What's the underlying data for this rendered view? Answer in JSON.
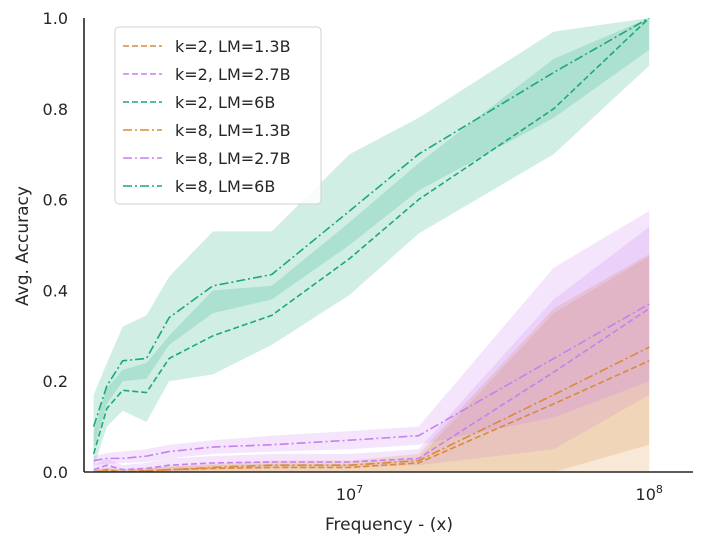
{
  "chart_data": {
    "type": "line",
    "title": "",
    "xlabel": "Frequency - (x)",
    "ylabel": "Avg. Accuracy",
    "xscale": "log",
    "xlim": [
      1300000,
      140000000
    ],
    "ylim": [
      0.0,
      1.0
    ],
    "xticks": [
      {
        "value": 10000000,
        "base": "10",
        "exp": "7"
      },
      {
        "value": 100000000,
        "base": "10",
        "exp": "8"
      }
    ],
    "yticks": [
      {
        "value": 0.0,
        "label": "0.0"
      },
      {
        "value": 0.2,
        "label": "0.2"
      },
      {
        "value": 0.4,
        "label": "0.4"
      },
      {
        "value": 0.6,
        "label": "0.6"
      },
      {
        "value": 0.8,
        "label": "0.8"
      },
      {
        "value": 1.0,
        "label": "1.0"
      }
    ],
    "grid": false,
    "legend_position": "top-left",
    "x": [
      1400000,
      1550000,
      1750000,
      2100000,
      2500000,
      3500000,
      5500000,
      10000000,
      17000000,
      48000000,
      100000000
    ],
    "series": [
      {
        "name": "k=2, LM=1.3B",
        "color": "#d98a3a",
        "dash": "dashed",
        "values": [
          0.0,
          0.005,
          0.0,
          0.003,
          0.005,
          0.008,
          0.01,
          0.01,
          0.02,
          0.15,
          0.245
        ],
        "lower": [
          0.0,
          0.0,
          0.0,
          0.0,
          0.0,
          0.0,
          0.0,
          0.0,
          0.0,
          0.0,
          0.0
        ],
        "upper": [
          0.005,
          0.01,
          0.006,
          0.008,
          0.012,
          0.015,
          0.018,
          0.018,
          0.03,
          0.35,
          0.475
        ]
      },
      {
        "name": "k=2, LM=2.7B",
        "color": "#c77ff2",
        "dash": "dashed",
        "values": [
          0.005,
          0.015,
          0.005,
          0.008,
          0.015,
          0.02,
          0.022,
          0.022,
          0.03,
          0.22,
          0.36
        ],
        "lower": [
          0.0,
          0.0,
          0.0,
          0.0,
          0.0,
          0.005,
          0.008,
          0.01,
          0.015,
          0.05,
          0.17
        ],
        "upper": [
          0.015,
          0.03,
          0.015,
          0.02,
          0.03,
          0.035,
          0.04,
          0.04,
          0.05,
          0.38,
          0.54
        ]
      },
      {
        "name": "k=2, LM=6B",
        "color": "#1ba87c",
        "dash": "dashed",
        "values": [
          0.04,
          0.14,
          0.18,
          0.175,
          0.25,
          0.3,
          0.345,
          0.47,
          0.6,
          0.8,
          1.0
        ],
        "lower": [
          0.01,
          0.1,
          0.135,
          0.11,
          0.2,
          0.215,
          0.28,
          0.39,
          0.525,
          0.7,
          0.895
        ],
        "upper": [
          0.09,
          0.185,
          0.225,
          0.24,
          0.3,
          0.4,
          0.41,
          0.55,
          0.68,
          0.91,
          1.0
        ]
      },
      {
        "name": "k=8, LM=1.3B",
        "color": "#d98a3a",
        "dash": "dashdot",
        "values": [
          0.0,
          0.002,
          0.0,
          0.002,
          0.005,
          0.01,
          0.015,
          0.015,
          0.025,
          0.17,
          0.275
        ],
        "lower": [
          0.0,
          0.0,
          0.0,
          0.0,
          0.0,
          0.0,
          0.0,
          0.0,
          0.0,
          0.0,
          0.06
        ],
        "upper": [
          0.005,
          0.008,
          0.005,
          0.008,
          0.012,
          0.018,
          0.025,
          0.025,
          0.04,
          0.36,
          0.48
        ]
      },
      {
        "name": "k=8, LM=2.7B",
        "color": "#c77ff2",
        "dash": "dashdot",
        "values": [
          0.025,
          0.03,
          0.03,
          0.035,
          0.045,
          0.055,
          0.06,
          0.07,
          0.08,
          0.25,
          0.37
        ],
        "lower": [
          0.015,
          0.018,
          0.02,
          0.022,
          0.03,
          0.04,
          0.045,
          0.05,
          0.06,
          0.12,
          0.2
        ],
        "upper": [
          0.035,
          0.042,
          0.045,
          0.05,
          0.06,
          0.07,
          0.08,
          0.09,
          0.1,
          0.45,
          0.575
        ]
      },
      {
        "name": "k=8, LM=6B",
        "color": "#1ba87c",
        "dash": "dashdot",
        "values": [
          0.1,
          0.19,
          0.245,
          0.25,
          0.34,
          0.41,
          0.435,
          0.575,
          0.7,
          0.88,
          1.0
        ],
        "lower": [
          0.05,
          0.15,
          0.2,
          0.205,
          0.28,
          0.35,
          0.38,
          0.5,
          0.62,
          0.78,
          0.93
        ],
        "upper": [
          0.17,
          0.24,
          0.32,
          0.345,
          0.43,
          0.53,
          0.53,
          0.7,
          0.78,
          0.97,
          1.0
        ]
      }
    ]
  }
}
